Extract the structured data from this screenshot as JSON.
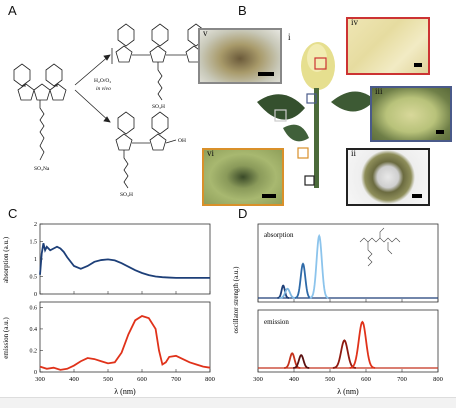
{
  "panels": {
    "a": "A",
    "b": "B",
    "c": "C",
    "d": "D"
  },
  "panel_a": {
    "reagents_line1": "H₂O/O₂",
    "reagents_line2": "in vivo",
    "sulfonate_left": "SO₃Na",
    "sulfonate_top": "SO₃H",
    "sulfonate_bottom": "SO₃H",
    "hydroxyl": "OH",
    "n_label": "n"
  },
  "panel_b": {
    "insets": [
      {
        "roman": "v",
        "border": "#888888"
      },
      {
        "roman": "iv",
        "border": "#cc3333"
      },
      {
        "roman": "i",
        "border": "none"
      },
      {
        "roman": "iii",
        "border": "#4a5a8a"
      },
      {
        "roman": "ii",
        "border": "#222222"
      },
      {
        "roman": "vi",
        "border": "#d9902a"
      }
    ]
  },
  "chart_data": [
    {
      "type": "line",
      "panel": "C-top",
      "ylabel": "absorption (a.u.)",
      "xlim": [
        300,
        800
      ],
      "ylim": [
        0,
        2
      ],
      "yticks": [
        "0",
        "0.5",
        "1",
        "1.5",
        "2"
      ],
      "x": [
        300,
        305,
        310,
        315,
        320,
        330,
        340,
        350,
        360,
        370,
        380,
        400,
        420,
        440,
        460,
        480,
        500,
        520,
        540,
        560,
        580,
        600,
        620,
        640,
        660,
        680,
        700,
        750,
        800
      ],
      "series": [
        {
          "color": "#1d3f78",
          "values": [
            0.55,
            1.15,
            1.45,
            1.25,
            1.35,
            1.25,
            1.3,
            1.35,
            1.3,
            1.2,
            1.05,
            0.8,
            0.72,
            0.8,
            0.92,
            0.97,
            0.99,
            0.96,
            0.88,
            0.78,
            0.68,
            0.6,
            0.54,
            0.5,
            0.48,
            0.47,
            0.46,
            0.46,
            0.46
          ]
        }
      ]
    },
    {
      "type": "line",
      "panel": "C-bottom",
      "ylabel": "emission (a.u.)",
      "xlabel": "λ (nm)",
      "xlim": [
        300,
        800
      ],
      "ylim": [
        0,
        0.65
      ],
      "xticks": [
        "300",
        "400",
        "500",
        "600",
        "700",
        "800"
      ],
      "yticks": [
        "0",
        "0.2",
        "0.4",
        "0.6"
      ],
      "x": [
        300,
        320,
        340,
        360,
        380,
        400,
        420,
        440,
        460,
        480,
        500,
        520,
        540,
        560,
        580,
        600,
        620,
        640,
        650,
        660,
        670,
        680,
        700,
        720,
        740,
        760,
        780,
        800
      ],
      "series": [
        {
          "color": "#e0321a",
          "values": [
            0.05,
            0.03,
            0.04,
            0.02,
            0.03,
            0.06,
            0.1,
            0.13,
            0.12,
            0.1,
            0.08,
            0.09,
            0.18,
            0.35,
            0.48,
            0.52,
            0.5,
            0.4,
            0.2,
            0.07,
            0.09,
            0.14,
            0.15,
            0.12,
            0.09,
            0.07,
            0.05,
            0.04
          ]
        }
      ]
    },
    {
      "type": "bar",
      "panel": "D-top",
      "ylabel": "oscillator strength (a.u.)",
      "xlim": [
        300,
        800
      ],
      "inset_label": "absorption",
      "peaks": [
        {
          "x": 370,
          "height": 0.2,
          "width": 10,
          "color": "#1d3f78"
        },
        {
          "x": 382,
          "height": 0.15,
          "width": 14,
          "color": "#7cb6e0"
        },
        {
          "x": 425,
          "height": 0.55,
          "width": 14,
          "color": "#2e6aa8"
        },
        {
          "x": 470,
          "height": 1.0,
          "width": 16,
          "color": "#8cc4ec"
        }
      ]
    },
    {
      "type": "bar",
      "panel": "D-bottom",
      "xlabel": "λ (nm)",
      "xlim": [
        300,
        800
      ],
      "xticks": [
        "300",
        "400",
        "500",
        "600",
        "700",
        "800"
      ],
      "inset_label": "emission",
      "peaks": [
        {
          "x": 395,
          "height": 0.32,
          "width": 14,
          "color": "#c4321c"
        },
        {
          "x": 420,
          "height": 0.28,
          "width": 14,
          "color": "#5a1010"
        },
        {
          "x": 540,
          "height": 0.6,
          "width": 20,
          "color": "#8e1a10"
        },
        {
          "x": 590,
          "height": 1.0,
          "width": 22,
          "color": "#e0321a"
        }
      ]
    }
  ]
}
